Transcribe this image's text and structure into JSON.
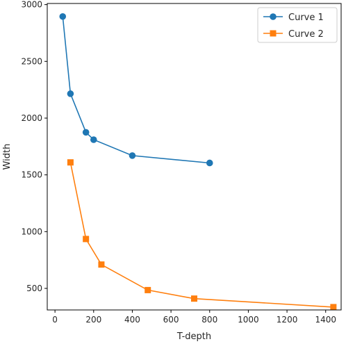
{
  "chart_data": {
    "type": "line",
    "title": "",
    "xlabel": "T-depth",
    "ylabel": "Width",
    "xlim": [
      -40,
      1480
    ],
    "ylim": [
      310,
      3010
    ],
    "xticks": [
      0,
      200,
      400,
      600,
      800,
      1000,
      1200,
      1400
    ],
    "yticks": [
      500,
      1000,
      1500,
      2000,
      2500,
      3000
    ],
    "grid": false,
    "legend_position": "top-right",
    "series": [
      {
        "name": "Curve 1",
        "color": "#1f77b4",
        "marker": "circle",
        "x": [
          40,
          80,
          160,
          200,
          400,
          800
        ],
        "y": [
          2895,
          2215,
          1875,
          1810,
          1670,
          1605
        ]
      },
      {
        "name": "Curve 2",
        "color": "#ff7f0e",
        "marker": "square",
        "x": [
          80,
          160,
          240,
          480,
          720,
          1440
        ],
        "y": [
          1610,
          935,
          710,
          485,
          410,
          335
        ]
      }
    ]
  }
}
